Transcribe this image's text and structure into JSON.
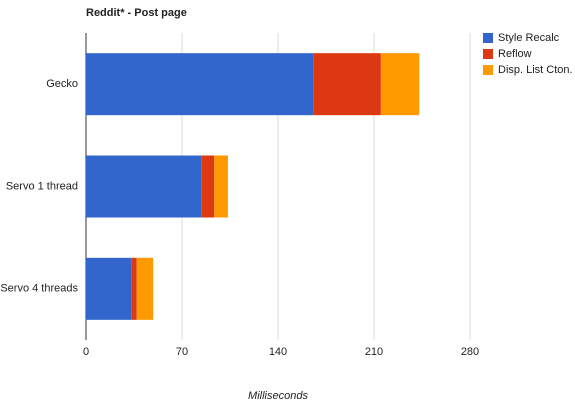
{
  "chart_data": {
    "type": "bar",
    "orientation": "horizontal",
    "stacked": true,
    "title": "Reddit* - Post page",
    "x_label": "Milliseconds",
    "categories": [
      "Gecko",
      "Servo 1 thread",
      "Servo 4 threads"
    ],
    "series": [
      {
        "name": "Style Recalc",
        "color": "#3366cc",
        "values": [
          166,
          84,
          33
        ]
      },
      {
        "name": "Reflow",
        "color": "#dc3912",
        "values": [
          49,
          9.5,
          4
        ]
      },
      {
        "name": "Disp. List Cton.",
        "color": "#ff9900",
        "values": [
          28,
          10,
          12
        ]
      }
    ],
    "xlim": [
      0,
      280
    ],
    "xticks": [
      0,
      70,
      140,
      210,
      280
    ],
    "grid": true,
    "legend": "right"
  }
}
